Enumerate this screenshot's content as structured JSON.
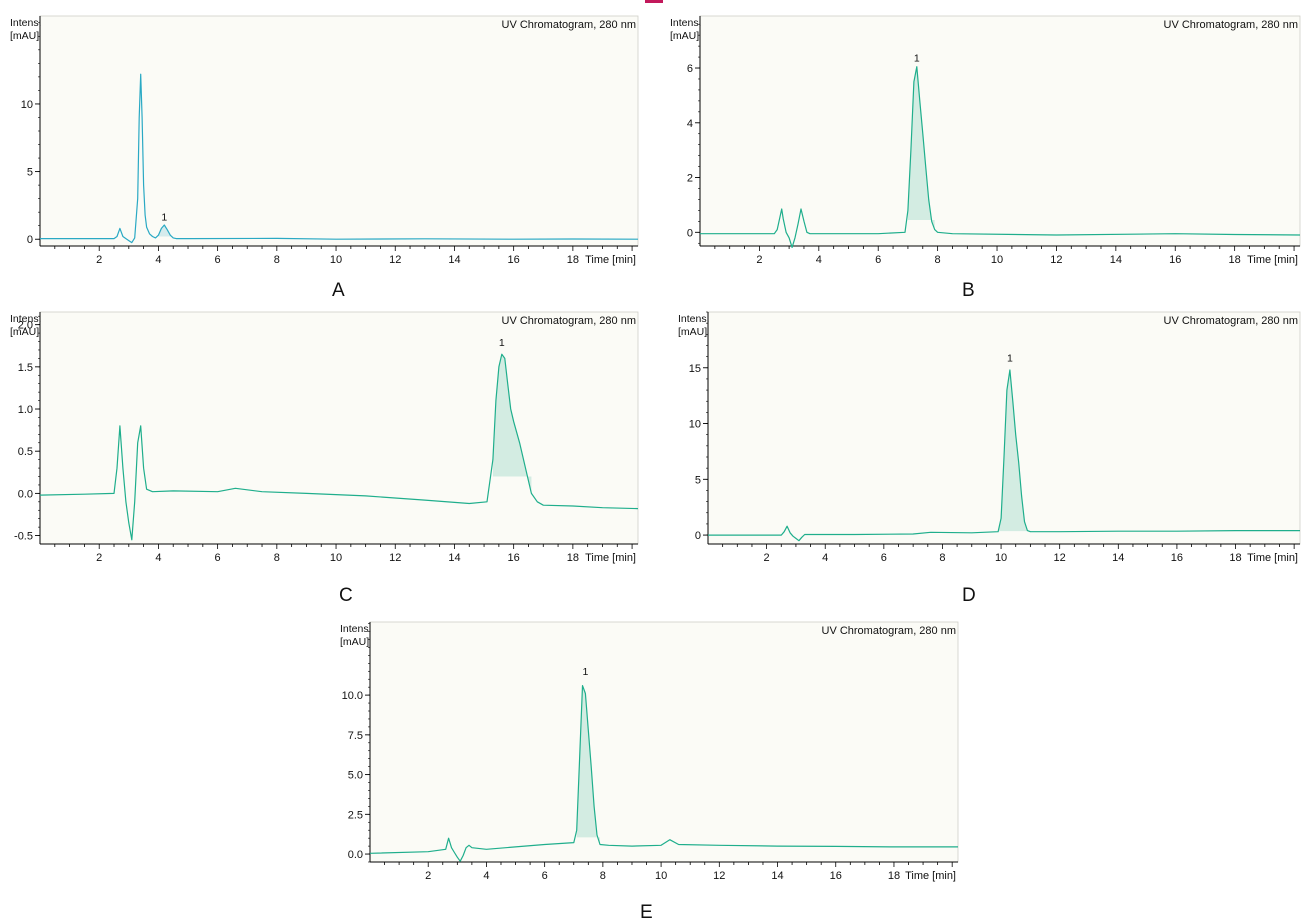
{
  "colors": {
    "trace_A": "#2aa9c4",
    "fill_A": "#2aa9c4",
    "trace": "#1fae8c",
    "fill": "#1fae8c",
    "plot_bg": "#fbfbf6",
    "axis": "#000000",
    "top_mark": "#c2185b"
  },
  "chart_data": [
    {
      "panel": "A",
      "type": "line",
      "title": "UV Chromatogram, 280 nm",
      "ylabel_line1": "Intens.",
      "ylabel_line2": "[mAU]",
      "xlabel": "Time [min]",
      "xlim": [
        0,
        20.2
      ],
      "ylim": [
        -0.5,
        16.5
      ],
      "xticks": [
        2,
        4,
        6,
        8,
        10,
        12,
        14,
        16,
        18
      ],
      "yticks": [
        0,
        5,
        10
      ],
      "ytick_labels": [
        "0",
        "5",
        "10"
      ],
      "peak_label": "1",
      "peak_label_x": 4.2,
      "peak_label_y": 1.1,
      "fill_from": 3.95,
      "fill_to": 4.5,
      "x": [
        0,
        2.5,
        2.6,
        2.7,
        2.8,
        2.9,
        3.0,
        3.1,
        3.2,
        3.3,
        3.35,
        3.4,
        3.45,
        3.5,
        3.55,
        3.6,
        3.7,
        3.8,
        3.9,
        4.0,
        4.1,
        4.2,
        4.3,
        4.4,
        4.5,
        4.6,
        5.0,
        8.0,
        10.0,
        13.0,
        16.0,
        18.0,
        20.2
      ],
      "y": [
        0.05,
        0.05,
        0.2,
        0.8,
        0.2,
        0.05,
        -0.1,
        -0.25,
        0.1,
        3.0,
        9.0,
        12.2,
        9.0,
        4.0,
        1.8,
        0.9,
        0.4,
        0.2,
        0.1,
        0.3,
        0.8,
        1.05,
        0.7,
        0.3,
        0.1,
        0.05,
        0.05,
        0.06,
        0.0,
        0.03,
        0.0,
        0.02,
        0.0
      ]
    },
    {
      "panel": "B",
      "type": "line",
      "title": "UV Chromatogram, 280 nm",
      "ylabel_line1": "Intens.",
      "ylabel_line2": "[mAU]",
      "xlabel": "Time [min]",
      "xlim": [
        0,
        20.2
      ],
      "ylim": [
        -0.5,
        7.9
      ],
      "xticks": [
        2,
        4,
        6,
        8,
        10,
        12,
        14,
        16,
        18
      ],
      "yticks": [
        0,
        2,
        4,
        6
      ],
      "ytick_labels": [
        "0",
        "2",
        "4",
        "6"
      ],
      "peak_label": "1",
      "peak_label_x": 7.3,
      "peak_label_y": 6.1,
      "fill_from": 6.95,
      "fill_to": 7.9,
      "x": [
        0,
        2.5,
        2.6,
        2.7,
        2.75,
        2.8,
        2.9,
        3.0,
        3.1,
        3.2,
        3.3,
        3.4,
        3.5,
        3.6,
        3.7,
        4.0,
        6.0,
        6.9,
        7.0,
        7.1,
        7.2,
        7.3,
        7.4,
        7.5,
        7.6,
        7.7,
        7.8,
        7.9,
        8.0,
        8.5,
        12.0,
        16.0,
        18.0,
        20.2
      ],
      "y": [
        -0.05,
        -0.05,
        0.1,
        0.6,
        0.85,
        0.5,
        0.0,
        -0.2,
        -0.55,
        -0.2,
        0.3,
        0.85,
        0.4,
        0.0,
        -0.05,
        -0.05,
        -0.05,
        0.0,
        0.8,
        3.0,
        5.5,
        6.05,
        4.8,
        3.6,
        2.4,
        1.2,
        0.4,
        0.1,
        0.0,
        -0.05,
        -0.1,
        -0.05,
        -0.08,
        -0.1
      ]
    },
    {
      "panel": "C",
      "type": "line",
      "title": "UV Chromatogram, 280 nm",
      "ylabel_line1": "Intens.",
      "ylabel_line2": "[mAU]",
      "xlabel": "Time [min]",
      "xlim": [
        0,
        20.2
      ],
      "ylim": [
        -0.6,
        2.15
      ],
      "xticks": [
        2,
        4,
        6,
        8,
        10,
        12,
        14,
        16,
        18
      ],
      "yticks": [
        -0.5,
        0.0,
        0.5,
        1.0,
        1.5,
        2.0
      ],
      "ytick_labels": [
        "-0.5",
        "0.0",
        "0.5",
        "1.0",
        "1.5",
        "2.0"
      ],
      "peak_label": "1",
      "peak_label_x": 15.6,
      "peak_label_y": 1.7,
      "fill_from": 15.2,
      "fill_to": 16.7,
      "x": [
        0,
        1.5,
        2.5,
        2.6,
        2.7,
        2.8,
        2.9,
        3.0,
        3.1,
        3.2,
        3.3,
        3.4,
        3.5,
        3.6,
        3.8,
        4.5,
        6.0,
        6.6,
        7.5,
        9.0,
        11.0,
        13.0,
        14.5,
        15.1,
        15.3,
        15.4,
        15.5,
        15.6,
        15.7,
        15.8,
        15.9,
        16.0,
        16.2,
        16.4,
        16.6,
        16.8,
        17.0,
        18.0,
        19.0,
        20.2
      ],
      "y": [
        -0.02,
        -0.01,
        0.0,
        0.3,
        0.8,
        0.3,
        -0.1,
        -0.35,
        -0.55,
        -0.1,
        0.6,
        0.8,
        0.3,
        0.05,
        0.02,
        0.03,
        0.02,
        0.06,
        0.02,
        0.0,
        -0.03,
        -0.08,
        -0.12,
        -0.1,
        0.4,
        1.1,
        1.5,
        1.65,
        1.6,
        1.3,
        1.0,
        0.85,
        0.6,
        0.3,
        0.0,
        -0.1,
        -0.14,
        -0.15,
        -0.17,
        -0.18
      ]
    },
    {
      "panel": "D",
      "type": "line",
      "title": "UV Chromatogram, 280 nm",
      "ylabel_line1": "Intens.",
      "ylabel_line2": "[mAU]",
      "xlabel": "Time [min]",
      "xlim": [
        0,
        20.2
      ],
      "ylim": [
        -0.8,
        20.0
      ],
      "xticks": [
        2,
        4,
        6,
        8,
        10,
        12,
        14,
        16,
        18
      ],
      "yticks": [
        0,
        5,
        10,
        15
      ],
      "ytick_labels": [
        "0",
        "5",
        "10",
        "15"
      ],
      "peak_label": "1",
      "peak_label_x": 10.3,
      "peak_label_y": 15.2,
      "fill_from": 9.9,
      "fill_to": 10.9,
      "x": [
        0,
        2.5,
        2.6,
        2.7,
        2.8,
        2.9,
        3.0,
        3.1,
        3.2,
        3.3,
        3.5,
        5.0,
        7.0,
        7.6,
        9.0,
        9.9,
        10.0,
        10.1,
        10.2,
        10.3,
        10.4,
        10.5,
        10.6,
        10.7,
        10.8,
        10.9,
        11.0,
        12.0,
        14.0,
        16.0,
        18.0,
        20.2
      ],
      "y": [
        0.0,
        0.0,
        0.3,
        0.8,
        0.2,
        -0.1,
        -0.3,
        -0.5,
        -0.2,
        0.05,
        0.05,
        0.05,
        0.1,
        0.25,
        0.2,
        0.3,
        1.5,
        7.0,
        13.0,
        14.8,
        12.0,
        9.0,
        6.5,
        3.5,
        1.2,
        0.4,
        0.3,
        0.3,
        0.35,
        0.35,
        0.4,
        0.4
      ]
    },
    {
      "panel": "E",
      "type": "line",
      "title": "UV Chromatogram, 280 nm",
      "ylabel_line1": "Intens.",
      "ylabel_line2": "[mAU]",
      "xlabel": "Time [min]",
      "xlim": [
        0,
        20.2
      ],
      "ylim": [
        -0.5,
        14.6
      ],
      "xticks": [
        2,
        4,
        6,
        8,
        10,
        12,
        14,
        16,
        18
      ],
      "yticks": [
        0.0,
        2.5,
        5.0,
        7.5,
        10.0
      ],
      "ytick_labels": [
        "0.0",
        "2.5",
        "5.0",
        "7.5",
        "10.0"
      ],
      "peak_label": "1",
      "peak_label_x": 7.4,
      "peak_label_y": 11.0,
      "fill_from": 7.1,
      "fill_to": 7.9,
      "x": [
        0,
        2.0,
        2.6,
        2.7,
        2.8,
        2.9,
        3.0,
        3.1,
        3.2,
        3.3,
        3.4,
        3.5,
        4.0,
        5.0,
        6.0,
        7.0,
        7.1,
        7.2,
        7.3,
        7.4,
        7.5,
        7.6,
        7.7,
        7.8,
        7.9,
        8.2,
        9.0,
        10.0,
        10.3,
        10.6,
        12.0,
        14.0,
        16.0,
        18.0,
        20.2
      ],
      "y": [
        0.05,
        0.15,
        0.3,
        1.0,
        0.4,
        0.1,
        -0.2,
        -0.45,
        -0.1,
        0.4,
        0.55,
        0.4,
        0.3,
        0.45,
        0.6,
        0.72,
        1.5,
        6.0,
        10.6,
        10.1,
        7.8,
        5.5,
        3.0,
        1.2,
        0.6,
        0.55,
        0.5,
        0.55,
        0.9,
        0.6,
        0.55,
        0.5,
        0.48,
        0.45,
        0.45
      ]
    }
  ],
  "panel_labels": [
    "A",
    "B",
    "C",
    "D",
    "E"
  ]
}
